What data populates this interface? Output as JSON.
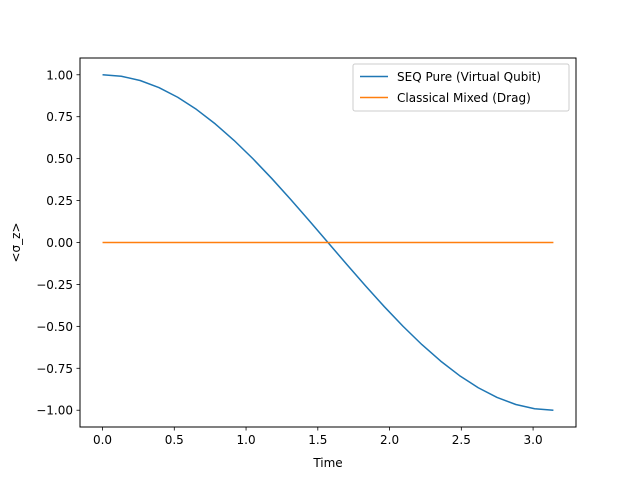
{
  "chart_data": {
    "type": "line",
    "title": "",
    "xlabel": "Time",
    "ylabel": "<σ_z>",
    "xlim": [
      -0.157,
      3.299
    ],
    "ylim": [
      -1.1,
      1.1
    ],
    "xticks": [
      "0.0",
      "0.5",
      "1.0",
      "1.5",
      "2.0",
      "2.5",
      "3.0"
    ],
    "yticks": [
      "1.00",
      "0.75",
      "0.50",
      "0.25",
      "0.00",
      "−0.25",
      "−0.50",
      "−0.75",
      "−1.00"
    ],
    "grid": false,
    "legend": "top-right",
    "series": [
      {
        "name": "SEQ Pure (Virtual Qubit)",
        "color": "#1f77b4",
        "x": [
          0.0,
          0.1309,
          0.2618,
          0.3927,
          0.5236,
          0.6545,
          0.7854,
          0.9163,
          1.0472,
          1.1781,
          1.309,
          1.4399,
          1.5708,
          1.7017,
          1.8326,
          1.9635,
          2.0944,
          2.2253,
          2.3562,
          2.4871,
          2.618,
          2.7489,
          2.8798,
          3.0107,
          3.1416
        ],
        "y": [
          1.0,
          0.9914,
          0.9659,
          0.9239,
          0.866,
          0.7934,
          0.7071,
          0.6088,
          0.5,
          0.3827,
          0.2588,
          0.1305,
          0.0,
          -0.1305,
          -0.2588,
          -0.3827,
          -0.5,
          -0.6088,
          -0.7071,
          -0.7934,
          -0.866,
          -0.9239,
          -0.9659,
          -0.9914,
          -1.0
        ]
      },
      {
        "name": "Classical Mixed (Drag)",
        "color": "#ff7f0e",
        "x": [
          0.0,
          3.1416
        ],
        "y": [
          0.0,
          0.0
        ]
      }
    ]
  }
}
